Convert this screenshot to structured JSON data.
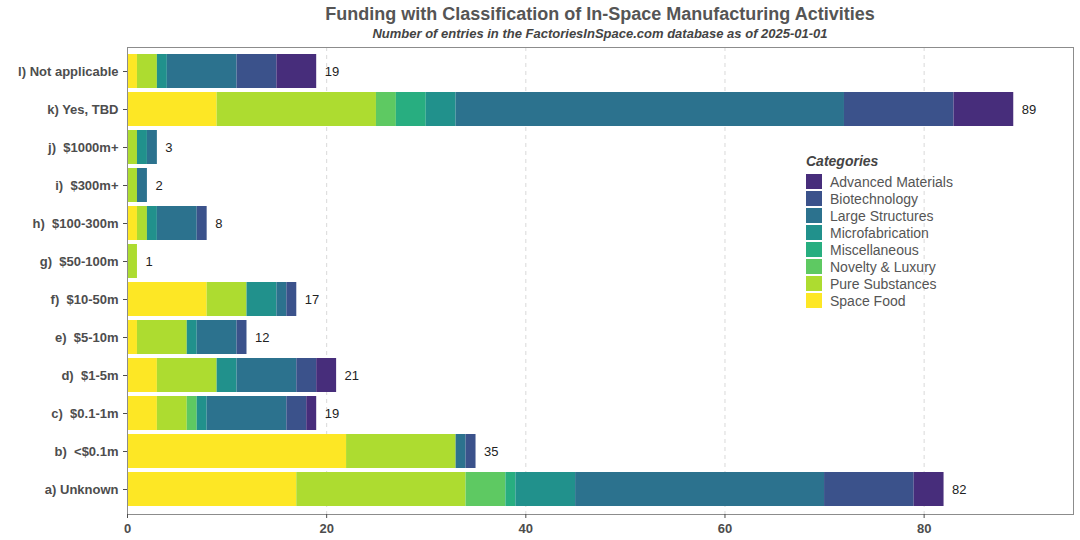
{
  "chart_data": {
    "type": "bar",
    "orientation": "horizontal",
    "stacked": true,
    "title": "Funding with Classification of In-Space Manufacturing Activities",
    "subtitle": "Number of entries in the FactoriesInSpace.com database as of 2025-01-01",
    "categories": [
      "l) Not applicable",
      "k) Yes, TBD",
      "j)  $1000m+",
      "i)  $300m+",
      "h)  $100-300m",
      "g)  $50-100m",
      "f)  $10-50m",
      "e)  $5-10m",
      "d)  $1-5m",
      "c)  $0.1-1m",
      "b)  <$0.1m",
      "a) Unknown"
    ],
    "series": [
      {
        "name": "Space Food",
        "color": "#fde725",
        "values": [
          1,
          9,
          0,
          0,
          1,
          0,
          8,
          1,
          3,
          3,
          22,
          17
        ]
      },
      {
        "name": "Pure Substances",
        "color": "#addc30",
        "values": [
          2,
          16,
          1,
          1,
          1,
          1,
          4,
          5,
          6,
          3,
          11,
          17
        ]
      },
      {
        "name": "Novelty & Luxury",
        "color": "#5ec962",
        "values": [
          0,
          2,
          0,
          0,
          0,
          0,
          0,
          0,
          0,
          1,
          0,
          4
        ]
      },
      {
        "name": "Miscellaneous",
        "color": "#28ae80",
        "values": [
          0,
          3,
          0,
          0,
          0,
          0,
          0,
          0,
          0,
          0,
          0,
          1
        ]
      },
      {
        "name": "Microfabrication",
        "color": "#21918c",
        "values": [
          1,
          3,
          1,
          0,
          1,
          0,
          3,
          1,
          2,
          1,
          0,
          6
        ]
      },
      {
        "name": "Large Structures",
        "color": "#2c728e",
        "values": [
          7,
          39,
          1,
          1,
          4,
          0,
          1,
          4,
          6,
          8,
          1,
          25
        ]
      },
      {
        "name": "Biotechnology",
        "color": "#3b528b",
        "values": [
          4,
          11,
          0,
          0,
          1,
          0,
          1,
          1,
          2,
          2,
          1,
          9
        ]
      },
      {
        "name": "Advanced Materials",
        "color": "#472d7b",
        "values": [
          4,
          6,
          0,
          0,
          0,
          0,
          0,
          0,
          2,
          1,
          0,
          3
        ]
      }
    ],
    "totals": [
      19,
      89,
      3,
      2,
      8,
      1,
      17,
      12,
      21,
      19,
      35,
      82
    ],
    "xlim": [
      0,
      95
    ],
    "xticks": [
      0,
      20,
      40,
      60,
      80
    ],
    "grid": true,
    "legend": "right",
    "legend_title": "Categories"
  }
}
